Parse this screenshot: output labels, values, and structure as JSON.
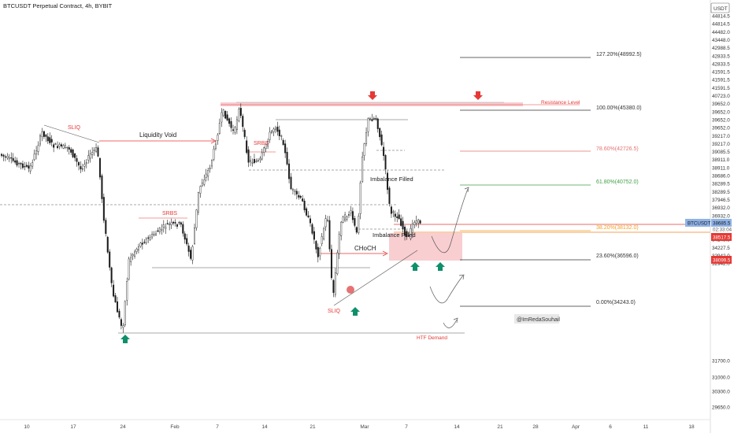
{
  "header": {
    "title": "BTCUSDT Perpetual Contract, 4h, BYBIT"
  },
  "currency_badge": "USDT",
  "watermark": "@ImRedaSouhail",
  "colors": {
    "candle_up": "#1a1a1a",
    "candle_down": "#1a1a1a",
    "candle_up_fill": "#ffffff",
    "accent_red": "#e53935",
    "accent_green": "#0f8f6a",
    "fib_orange": "#f0a020",
    "fib_red": "#e57373",
    "fib_green": "#43a047",
    "zone_fill": "#f7c5c9",
    "current_price": "#8fb3e8"
  },
  "chart_data": {
    "type": "candlestick",
    "title": "BTCUSDT Perpetual Contract, 4h, BYBIT",
    "x_ticks": [
      "10",
      "17",
      "24",
      "Feb",
      "7",
      "14",
      "21",
      "Mar",
      "7",
      "14",
      "21",
      "28",
      "Apr",
      "6",
      "11",
      "18"
    ],
    "y_ticks": [
      "44814.5",
      "44814.5",
      "44482.0",
      "43448.0",
      "42988.5",
      "42833.5",
      "42833.5",
      "41591.5",
      "41591.5",
      "41591.5",
      "40723.0",
      "39652.0",
      "39652.0",
      "39652.0",
      "39652.0",
      "39217.0",
      "39217.0",
      "39085.5",
      "38911.0",
      "38911.0",
      "38686.0",
      "38289.5",
      "38289.5",
      "37946.5",
      "36932.0",
      "36932.0",
      "36212.5",
      "36212.5",
      "34243.5",
      "34227.5",
      "32942.0",
      "32942.0",
      "31700.0",
      "31000.0",
      "30300.0",
      "29650.0"
    ],
    "price_labels": [
      {
        "text": "38685.5",
        "kind": "current"
      },
      {
        "text": "02:33:04",
        "kind": "countdown"
      },
      {
        "text": "38517.5",
        "kind": "level"
      },
      {
        "text": "38099.5",
        "kind": "level"
      }
    ],
    "symbol_tag": "BTCUSDT",
    "fib_levels": [
      {
        "ratio_label": "127.20%(48992.5)",
        "kind": "neutral"
      },
      {
        "ratio_label": "100.00%(45380.0)",
        "kind": "neutral"
      },
      {
        "ratio_label": "78.60%(42726.5)",
        "kind": "red"
      },
      {
        "ratio_label": "61.80%(40752.0)",
        "kind": "green"
      },
      {
        "ratio_label": "38.20%(38132.0)",
        "kind": "orange"
      },
      {
        "ratio_label": "23.60%(36596.0)",
        "kind": "neutral"
      },
      {
        "ratio_label": "0.00%(34243.0)",
        "kind": "neutral"
      }
    ],
    "annotations": {
      "sliq_1": "SLIQ",
      "liquidity_void": "Liquidity Void",
      "srbs_1": "SRBS",
      "srbs_2": "SRBS",
      "imbalance_filled_1": "Imbalance Filled",
      "imbalance_filled_2": "Imbalance Filled",
      "choch": "CHoCH",
      "sliq_2": "SLIQ",
      "resistance_level": "Resistance Level",
      "htf_demand": "HTF Demand"
    }
  }
}
